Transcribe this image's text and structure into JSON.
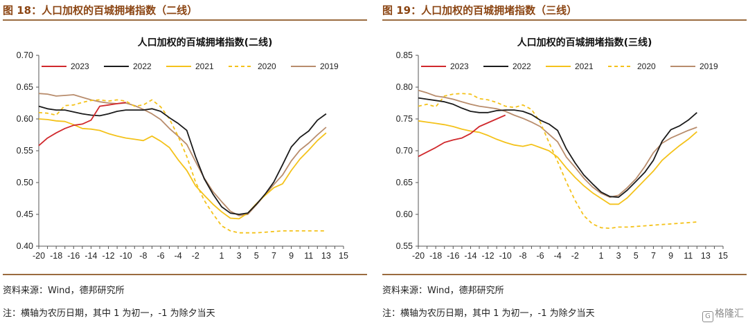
{
  "panels": [
    {
      "fig_title": "图 18：人口加权的百城拥堵指数（二线）",
      "source": "资料来源：Wind，德邦研究所",
      "note": "注：横轴为农历日期，其中 1 为初一，-1 为除夕当天",
      "chart_data": {
        "type": "line",
        "title": "人口加权的百城拥堵指数(二线)",
        "xlabel": "",
        "ylabel": "",
        "x_ticks": [
          -20,
          -18,
          -16,
          -14,
          -12,
          -10,
          -8,
          -6,
          -4,
          -2,
          1,
          3,
          5,
          7,
          9,
          11,
          13,
          15
        ],
        "xlim": [
          -20,
          15
        ],
        "ylim": [
          0.4,
          0.7
        ],
        "y_ticks": [
          "0.40",
          "0.45",
          "0.50",
          "0.55",
          "0.60",
          "0.65",
          "0.70"
        ],
        "legend_position": "top",
        "series": [
          {
            "name": "2023",
            "color": "#d0282c",
            "dash": false,
            "values": [
              0.558,
              0.57,
              0.578,
              0.585,
              0.59,
              0.592,
              0.598,
              0.62,
              0.622,
              0.624,
              0.626
            ]
          },
          {
            "name": "2022",
            "color": "#1a1a1a",
            "dash": false,
            "values": [
              0.62,
              0.616,
              0.614,
              0.614,
              0.611,
              0.608,
              0.606,
              0.605,
              0.608,
              0.612,
              0.614,
              0.614,
              0.614,
              0.616,
              0.612,
              0.602,
              0.593,
              0.582,
              0.541,
              0.506,
              0.482,
              0.462,
              0.452,
              0.45,
              0.452,
              0.466,
              0.482,
              0.501,
              0.528,
              0.556,
              0.571,
              0.581,
              0.598,
              0.608
            ]
          },
          {
            "name": "2021",
            "color": "#f4c21a",
            "dash": false,
            "values": [
              0.6,
              0.599,
              0.597,
              0.596,
              0.591,
              0.585,
              0.584,
              0.582,
              0.577,
              0.573,
              0.57,
              0.568,
              0.566,
              0.573,
              0.565,
              0.555,
              0.536,
              0.519,
              0.495,
              0.48,
              0.466,
              0.454,
              0.444,
              0.443,
              0.452,
              0.467,
              0.48,
              0.492,
              0.498,
              0.519,
              0.537,
              0.551,
              0.566,
              0.578
            ]
          },
          {
            "name": "2020",
            "color": "#f4c21a",
            "dash": true,
            "values": [
              0.61,
              0.609,
              0.606,
              0.621,
              0.622,
              0.626,
              0.629,
              0.63,
              0.628,
              0.63,
              0.628,
              0.62,
              0.622,
              0.63,
              0.619,
              0.6,
              0.573,
              0.541,
              0.501,
              0.472,
              0.451,
              0.432,
              0.424,
              0.421,
              0.421,
              0.421,
              0.422,
              0.423,
              0.424,
              0.424,
              0.424,
              0.424,
              0.424,
              0.424
            ]
          },
          {
            "name": "2019",
            "color": "#b88c6c",
            "dash": false,
            "values": [
              0.64,
              0.639,
              0.636,
              0.637,
              0.638,
              0.634,
              0.63,
              0.627,
              0.625,
              0.624,
              0.625,
              0.621,
              0.615,
              0.608,
              0.599,
              0.585,
              0.573,
              0.56,
              0.533,
              0.507,
              0.486,
              0.47,
              0.455,
              0.448,
              0.45,
              0.465,
              0.481,
              0.497,
              0.512,
              0.534,
              0.551,
              0.562,
              0.575,
              0.587
            ]
          }
        ]
      }
    },
    {
      "fig_title": "图 19：人口加权的百城拥堵指数（三线）",
      "source": "资料来源：Wind，德邦研究所",
      "note": "注：横轴为农历日期，其中 1 为初一，-1 为除夕当天",
      "chart_data": {
        "type": "line",
        "title": "人口加权的百城拥堵指数(三线)",
        "xlabel": "",
        "ylabel": "",
        "x_ticks": [
          -20,
          -18,
          -16,
          -14,
          -12,
          -10,
          -8,
          -6,
          -4,
          -2,
          1,
          3,
          5,
          7,
          9,
          11,
          13,
          15
        ],
        "xlim": [
          -20,
          15
        ],
        "ylim": [
          0.55,
          0.85
        ],
        "y_ticks": [
          "0.55",
          "0.60",
          "0.65",
          "0.70",
          "0.75",
          "0.80",
          "0.85"
        ],
        "legend_position": "top",
        "series": [
          {
            "name": "2023",
            "color": "#d0282c",
            "dash": false,
            "values": [
              0.691,
              0.698,
              0.705,
              0.713,
              0.717,
              0.72,
              0.727,
              0.738,
              0.744,
              0.75,
              0.756
            ]
          },
          {
            "name": "2022",
            "color": "#1a1a1a",
            "dash": false,
            "values": [
              0.783,
              0.781,
              0.779,
              0.777,
              0.773,
              0.767,
              0.762,
              0.76,
              0.76,
              0.763,
              0.764,
              0.764,
              0.762,
              0.757,
              0.748,
              0.742,
              0.732,
              0.703,
              0.681,
              0.662,
              0.648,
              0.635,
              0.628,
              0.627,
              0.638,
              0.652,
              0.666,
              0.685,
              0.715,
              0.733,
              0.739,
              0.748,
              0.76
            ]
          },
          {
            "name": "2021",
            "color": "#f4c21a",
            "dash": false,
            "values": [
              0.747,
              0.745,
              0.743,
              0.741,
              0.738,
              0.734,
              0.731,
              0.729,
              0.724,
              0.718,
              0.713,
              0.709,
              0.707,
              0.71,
              0.705,
              0.7,
              0.69,
              0.673,
              0.658,
              0.645,
              0.634,
              0.625,
              0.616,
              0.616,
              0.626,
              0.64,
              0.654,
              0.668,
              0.685,
              0.697,
              0.708,
              0.718,
              0.73
            ]
          },
          {
            "name": "2020",
            "color": "#f4c21a",
            "dash": true,
            "values": [
              0.77,
              0.773,
              0.769,
              0.786,
              0.789,
              0.79,
              0.789,
              0.782,
              0.78,
              0.776,
              0.77,
              0.768,
              0.772,
              0.765,
              0.745,
              0.713,
              0.683,
              0.651,
              0.622,
              0.598,
              0.585,
              0.579,
              0.578,
              0.58,
              0.58,
              0.581,
              0.582,
              0.583,
              0.584,
              0.585,
              0.586,
              0.587,
              0.588
            ]
          },
          {
            "name": "2019",
            "color": "#b88c6c",
            "dash": false,
            "values": [
              0.795,
              0.791,
              0.786,
              0.784,
              0.781,
              0.777,
              0.773,
              0.77,
              0.768,
              0.766,
              0.762,
              0.756,
              0.751,
              0.745,
              0.738,
              0.726,
              0.714,
              0.69,
              0.674,
              0.657,
              0.643,
              0.633,
              0.627,
              0.63,
              0.642,
              0.656,
              0.675,
              0.697,
              0.712,
              0.72,
              0.726,
              0.732,
              0.737
            ]
          }
        ]
      }
    }
  ],
  "watermark": {
    "icon": "brand-logo-icon",
    "text": "格隆汇"
  }
}
